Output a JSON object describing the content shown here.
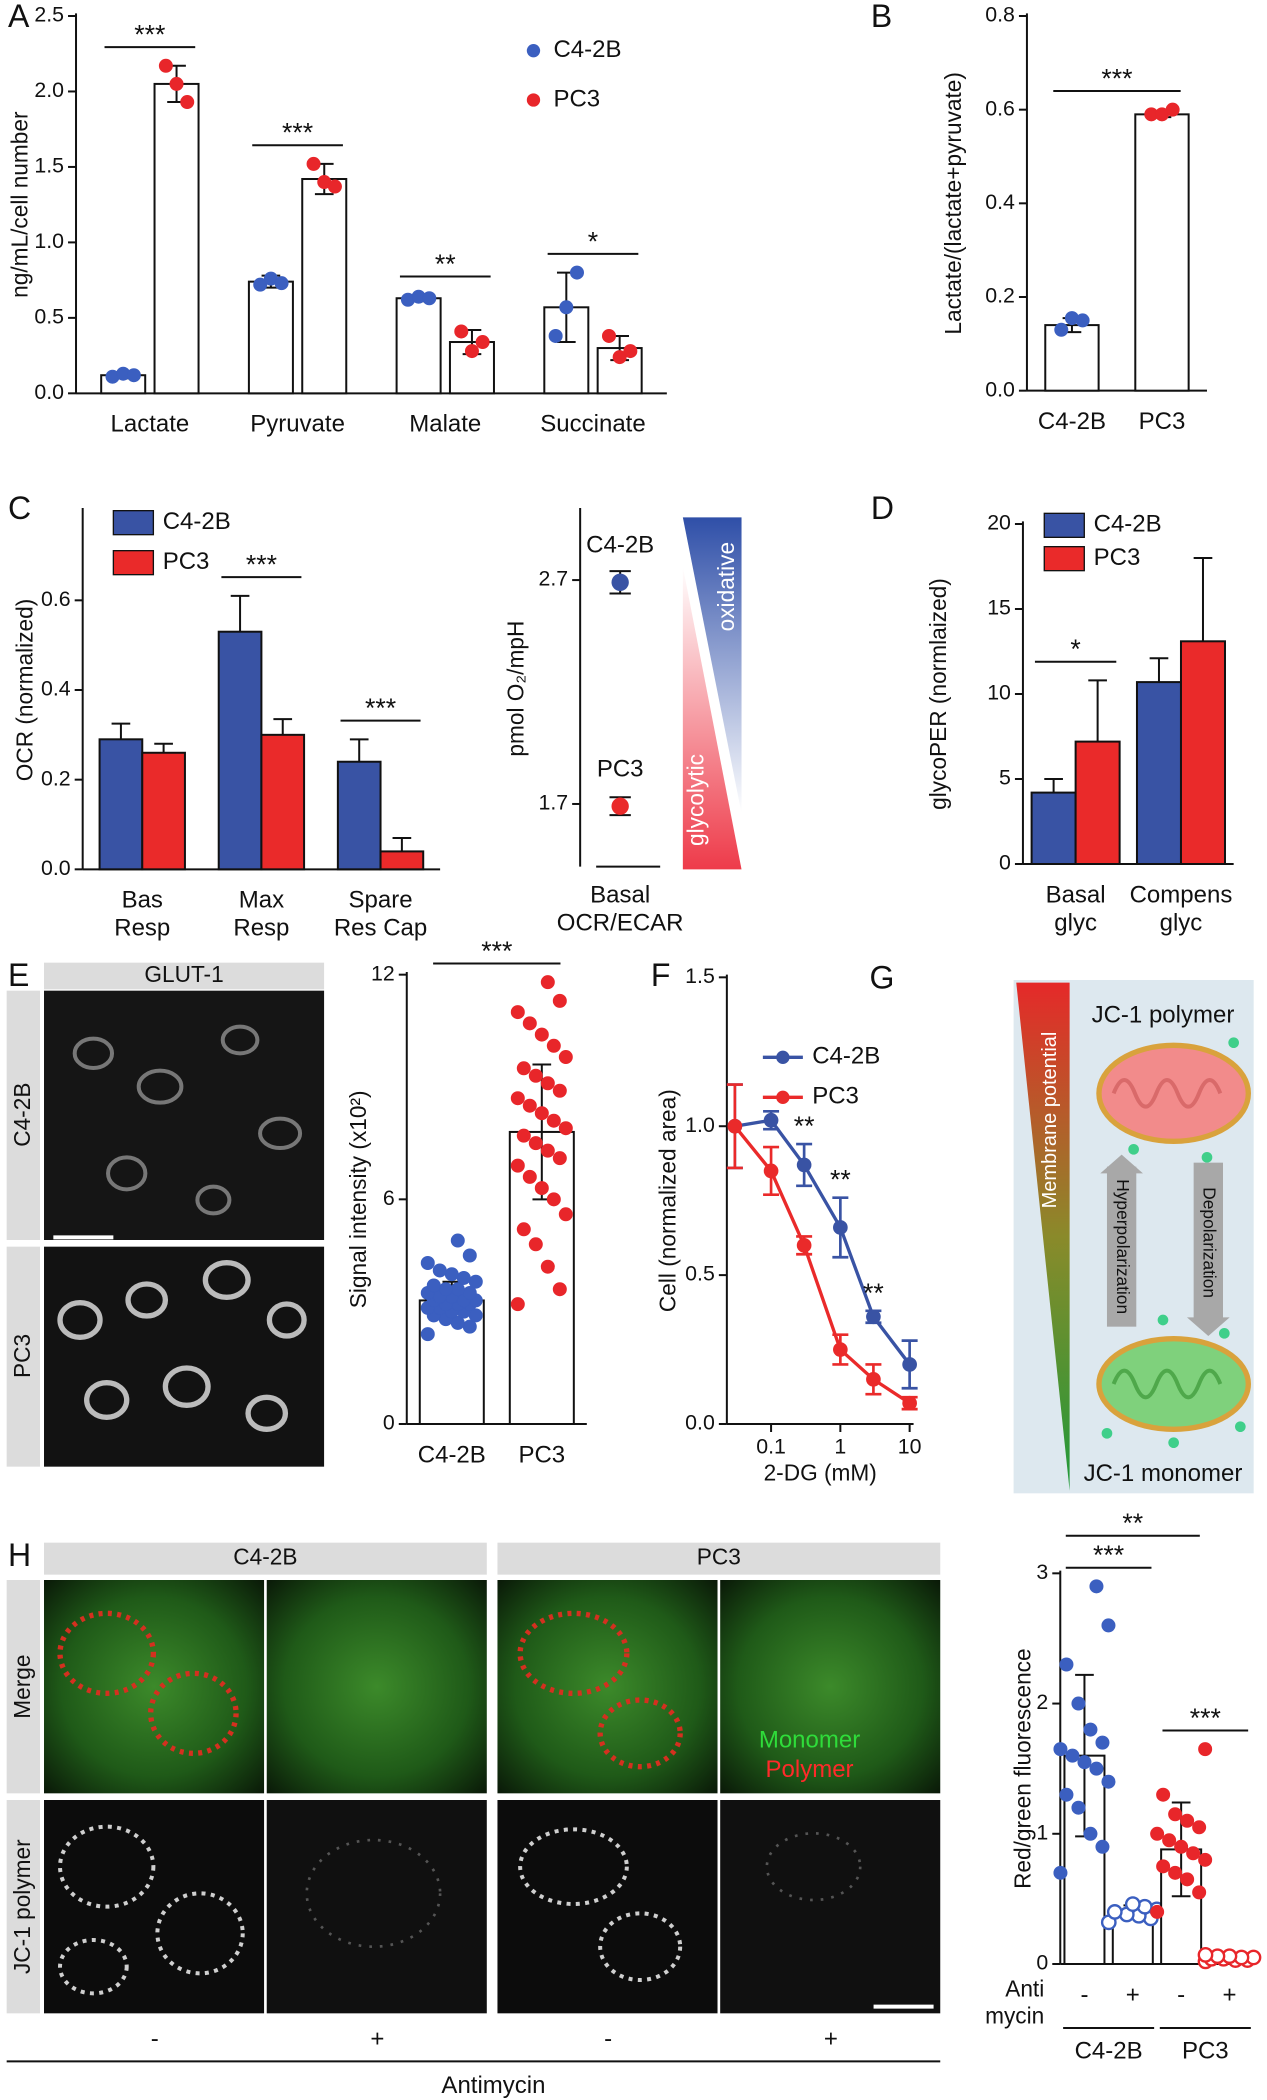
{
  "chart_data": [
    {
      "type": "bar",
      "panel": "A",
      "ylabel": "ng/mL/cell number",
      "ylim": [
        0,
        2.5
      ],
      "yticks": [
        {
          "value": 0,
          "label": "0.0"
        },
        0.5,
        {
          "value": 1,
          "label": "1.0"
        },
        1.5,
        {
          "value": 2,
          "label": "2.0"
        },
        2.5
      ],
      "categories": [
        "Lactate",
        "Pyruvate",
        "Malate",
        "Succinate"
      ],
      "series": [
        {
          "name": "C4-2B",
          "color": "#3b5fc0",
          "fill": "#ffffff",
          "values": [
            0.12,
            0.74,
            0.63,
            0.57
          ],
          "errors": [
            0.02,
            0.04,
            0.02,
            0.23
          ],
          "points": [
            [
              0.11,
              0.13,
              0.12
            ],
            [
              0.72,
              0.76,
              0.73
            ],
            [
              0.62,
              0.64,
              0.63
            ],
            [
              0.38,
              0.57,
              0.8
            ]
          ]
        },
        {
          "name": "PC3",
          "color": "#e8262a",
          "fill": "#ffffff",
          "values": [
            2.05,
            1.42,
            0.34,
            0.3
          ],
          "errors": [
            0.12,
            0.1,
            0.08,
            0.08
          ],
          "points": [
            [
              2.17,
              2.05,
              1.93
            ],
            [
              1.52,
              1.4,
              1.37
            ],
            [
              0.41,
              0.28,
              0.34
            ],
            [
              0.38,
              0.24,
              0.28
            ]
          ]
        }
      ],
      "significance": [
        "***",
        "***",
        "**",
        "*"
      ],
      "legend": "top-right"
    },
    {
      "type": "bar",
      "panel": "B",
      "ylabel": "Lactate/(lactate+pyruvate)",
      "ylim": [
        0,
        0.8
      ],
      "yticks": [
        {
          "value": 0,
          "label": "0.0"
        },
        0.2,
        0.4,
        0.6,
        0.8
      ],
      "categories": [
        "C4-2B",
        "PC3"
      ],
      "series": [
        {
          "colors": [
            "#3b5fc0",
            "#e8262a"
          ],
          "fill": "#ffffff",
          "values": [
            0.14,
            0.59
          ],
          "errors": [
            0.015,
            0.006
          ],
          "points": [
            [
              0.13,
              0.155,
              0.15
            ],
            [
              0.59,
              0.59,
              0.6
            ]
          ]
        }
      ],
      "significance": [
        {
          "label": "***",
          "span": [
            0,
            1
          ]
        }
      ]
    },
    {
      "type": "bar",
      "panel": "C",
      "ylabel": "OCR (normalized)",
      "ylim": [
        0,
        0.8
      ],
      "yticks": [
        {
          "value": 0,
          "label": "0.0"
        },
        0.2,
        0.4,
        0.6
      ],
      "categories": [
        [
          "Bas",
          "Resp"
        ],
        [
          "Max",
          "Resp"
        ],
        [
          "Spare",
          "Res Cap"
        ]
      ],
      "series": [
        {
          "name": "C4-2B",
          "color": "#3953a4",
          "values": [
            0.29,
            0.53,
            0.24
          ],
          "errors": [
            0.035,
            0.08,
            0.05
          ]
        },
        {
          "name": "PC3",
          "color": "#ea2a2a",
          "values": [
            0.26,
            0.3,
            0.04
          ],
          "errors": [
            0.02,
            0.035,
            0.03
          ]
        }
      ],
      "significance": [
        null,
        "***",
        "***"
      ],
      "legend": "top-left"
    },
    {
      "type": "dot",
      "ylabel": "pmol O₂/mpH",
      "xlabel": [
        "Basal",
        "OCR/ECAR"
      ],
      "ylim": [
        1.42,
        3.01
      ],
      "yticks": [
        1.7,
        2.7
      ],
      "series": [
        {
          "name": "C4-2B",
          "color": "#3953a4",
          "value": 2.69,
          "error": 0.05
        },
        {
          "name": "PC3",
          "color": "#ea2a2a",
          "value": 1.69,
          "error": 0.04
        }
      ],
      "gradient_labels": [
        "oxidative",
        "glycolytic"
      ]
    },
    {
      "type": "bar",
      "panel": "D",
      "ylabel": "glycoPER (normlaized)",
      "ylim": [
        0,
        20
      ],
      "yticks": [
        0,
        5,
        10,
        15,
        20
      ],
      "categories": [
        [
          "Basal",
          "glyc"
        ],
        [
          "Compens",
          "glyc"
        ]
      ],
      "series": [
        {
          "name": "C4-2B",
          "color": "#3953a4",
          "values": [
            4.2,
            10.7
          ],
          "errors": [
            0.8,
            1.4
          ]
        },
        {
          "name": "PC3",
          "color": "#ea2a2a",
          "values": [
            7.2,
            13.1
          ],
          "errors": [
            3.6,
            4.9
          ]
        }
      ],
      "significance": [
        "*",
        null
      ],
      "legend": "top-left"
    },
    {
      "type": "bar",
      "panel": "E",
      "ylabel": "Signal intensity (x10²)",
      "ylim": [
        0,
        12
      ],
      "yticks": [
        0,
        6,
        12
      ],
      "categories": [
        "C4-2B",
        "PC3"
      ],
      "series": [
        {
          "colors": [
            "#3b5fc0",
            "#e8262a"
          ],
          "fill": "#ffffff",
          "values": [
            3.3,
            7.8
          ],
          "errors": [
            0.5,
            1.8
          ],
          "points": [
            [
              2.4,
              2.6,
              2.7,
              2.8,
              2.9,
              2.9,
              3.0,
              3.0,
              3.1,
              3.1,
              3.2,
              3.2,
              3.2,
              3.3,
              3.3,
              3.3,
              3.4,
              3.4,
              3.5,
              3.5,
              3.6,
              3.6,
              3.7,
              3.8,
              3.9,
              4.0,
              4.1,
              4.3,
              4.5,
              4.9
            ],
            [
              3.2,
              3.6,
              4.2,
              4.8,
              5.2,
              5.6,
              6.0,
              6.3,
              6.6,
              6.9,
              7.1,
              7.3,
              7.5,
              7.7,
              7.9,
              8.1,
              8.3,
              8.5,
              8.7,
              8.9,
              9.1,
              9.3,
              9.5,
              9.8,
              10.1,
              10.4,
              10.7,
              11.0,
              11.3,
              11.8
            ]
          ]
        }
      ],
      "significance": [
        {
          "label": "***",
          "span": [
            0,
            1
          ]
        }
      ]
    },
    {
      "type": "line",
      "panel": "F",
      "xlabel": "2-DG (mM)",
      "ylabel": "Cell (normalized area)",
      "xlog": true,
      "xlim": [
        0.023,
        11.4
      ],
      "xticks": [
        0.1,
        1,
        10
      ],
      "ylim": [
        0,
        1.5
      ],
      "yticks": [
        {
          "value": 0,
          "label": "0.0"
        },
        0.5,
        {
          "value": 1,
          "label": "1.0"
        },
        1.5
      ],
      "x": [
        0.03,
        0.1,
        0.3,
        1,
        3,
        10
      ],
      "series": [
        {
          "name": "C4-2B",
          "color": "#3953a4",
          "values": [
            1.0,
            1.02,
            0.87,
            0.66,
            0.36,
            0.2
          ],
          "errors": [
            0.14,
            0.03,
            0.07,
            0.1,
            0.02,
            0.08
          ]
        },
        {
          "name": "PC3",
          "color": "#ea2a2a",
          "values": [
            1.0,
            0.85,
            0.6,
            0.25,
            0.15,
            0.07
          ],
          "errors": [
            0.14,
            0.08,
            0.03,
            0.05,
            0.05,
            0.02
          ]
        }
      ],
      "annotations": [
        {
          "label": "**",
          "x": 0.3
        },
        {
          "label": "**",
          "x": 1
        },
        {
          "label": "**",
          "x": 3
        }
      ],
      "legend": "top-right"
    },
    {
      "type": "bar",
      "panel": "H",
      "ylabel": "Red/green fluorescence",
      "ylim": [
        0,
        3
      ],
      "yticks": [
        0,
        1,
        2,
        3
      ],
      "categories": [
        "-",
        "+",
        "-",
        "+"
      ],
      "row_label": [
        "Anti",
        "mycin"
      ],
      "groups": [
        {
          "label": "C4-2B",
          "span": [
            0,
            1
          ]
        },
        {
          "label": "PC3",
          "span": [
            2,
            3
          ]
        }
      ],
      "series": [
        {
          "colors": [
            "#3b5fc0",
            "#3b5fc0",
            "#e8262a",
            "#e8262a"
          ],
          "markers": [
            "filled",
            "open",
            "filled",
            "open"
          ],
          "fill": "#ffffff",
          "values": [
            1.6,
            0.4,
            0.88,
            0.05
          ],
          "errors": [
            0.62,
            0.05,
            0.36,
            0.03
          ],
          "points": [
            [
              0.7,
              0.9,
              1.0,
              1.2,
              1.3,
              1.4,
              1.5,
              1.55,
              1.6,
              1.65,
              1.7,
              1.8,
              2.0,
              2.3,
              2.6,
              2.9
            ],
            [
              0.32,
              0.35,
              0.37,
              0.38,
              0.4,
              0.42,
              0.44,
              0.46
            ],
            [
              0.4,
              0.55,
              0.65,
              0.7,
              0.75,
              0.8,
              0.85,
              0.9,
              0.95,
              1.0,
              1.05,
              1.1,
              1.15,
              1.3,
              1.65
            ],
            [
              0.02,
              0.03,
              0.03,
              0.04,
              0.04,
              0.05,
              0.05,
              0.06,
              0.06,
              0.07
            ]
          ]
        }
      ],
      "significance": [
        {
          "label": "***",
          "span": [
            0,
            1
          ]
        },
        {
          "label": "**",
          "span": [
            0,
            2
          ]
        },
        {
          "label": "***",
          "span": [
            2,
            3
          ]
        }
      ]
    }
  ],
  "panel_e_images": {
    "header": "GLUT-1",
    "rows": [
      "C4-2B",
      "PC3"
    ]
  },
  "diagram_g": {
    "panel": "G",
    "top": "JC-1 polymer",
    "gradient": "Membrane potential",
    "arrows": [
      "Hyperpolarization",
      "Depolarization"
    ],
    "bottom": "JC-1 monomer"
  },
  "panel_h_images": {
    "columns": [
      "C4-2B",
      "PC3"
    ],
    "rows": [
      "Merge",
      "JC-1 polymer"
    ],
    "overlay": [
      "Monomer",
      "Polymer"
    ],
    "treatment": [
      "-",
      "+",
      "-",
      "+"
    ],
    "treatment_label": "Antimycin"
  }
}
